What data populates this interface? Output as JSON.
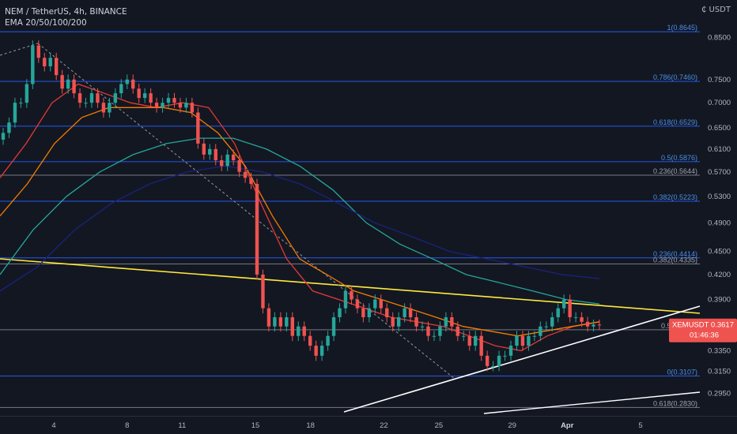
{
  "header": {
    "title": "NEM / TetherUS, 4h, BINANCE",
    "indicator": "EMA 20/50/100/200",
    "currency": "₵ USDT"
  },
  "colors": {
    "background": "#131722",
    "fib_line": "#2962ff",
    "fib_text": "#4a8fe7",
    "candle_up": "#26a69a",
    "candle_down": "#ef5350",
    "ema20": "#e53935",
    "ema50": "#f57c00",
    "ema100": "#26a69a",
    "ema200": "#1a237e",
    "trend_yellow": "#ffeb3b",
    "trend_white": "#ffffff",
    "price_tag": "#ef5350"
  },
  "price_tag": {
    "symbol": "XEMUSDT",
    "price": "0.3617",
    "countdown": "01:46:36"
  },
  "chart_data": {
    "type": "candlestick",
    "title": "NEM / TetherUS, 4h, BINANCE",
    "y_scale": "log",
    "ylim": [
      0.276,
      0.95
    ],
    "y_ticks": [
      "0.8500",
      "0.7500",
      "0.7000",
      "0.6500",
      "0.6100",
      "0.5700",
      "0.5300",
      "0.4900",
      "0.4500",
      "0.4200",
      "0.3900",
      "0.3600",
      "0.3350",
      "0.3150",
      "0.2950"
    ],
    "x_ticks": [
      "4",
      "8",
      "11",
      "15",
      "18",
      "22",
      "25",
      "29",
      "Apr",
      "5"
    ],
    "x_days_range": [
      1.0,
      6.9
    ],
    "fib_levels": [
      {
        "label": "1(0.8645)",
        "value": 0.8645,
        "blue": true
      },
      {
        "label": "0.786(0.7460)",
        "value": 0.746,
        "blue": true
      },
      {
        "label": "0.618(0.6529)",
        "value": 0.6529,
        "blue": true
      },
      {
        "label": "0.5(0.5876)",
        "value": 0.5876,
        "blue": true
      },
      {
        "label": "0.236(0.5644)",
        "value": 0.5644,
        "blue": false
      },
      {
        "label": "0.382(0.5223)",
        "value": 0.5223,
        "blue": true
      },
      {
        "label": "0.236(0.4414)",
        "value": 0.4414,
        "blue": true
      },
      {
        "label": "0.382(0.4335)",
        "value": 0.4335,
        "blue": false
      },
      {
        "label": "0.5(0.3565)",
        "value": 0.3565,
        "blue": false
      },
      {
        "label": "0(0.3107)",
        "value": 0.3107,
        "blue": true
      },
      {
        "label": "0.618(0.2830)",
        "value": 0.283,
        "blue": false
      }
    ],
    "closes": [
      0.64,
      0.66,
      0.7,
      0.7,
      0.74,
      0.83,
      0.8,
      0.78,
      0.8,
      0.76,
      0.73,
      0.75,
      0.72,
      0.7,
      0.7,
      0.72,
      0.7,
      0.68,
      0.7,
      0.72,
      0.74,
      0.75,
      0.73,
      0.71,
      0.72,
      0.7,
      0.69,
      0.7,
      0.71,
      0.7,
      0.69,
      0.7,
      0.68,
      0.62,
      0.6,
      0.61,
      0.59,
      0.58,
      0.6,
      0.59,
      0.57,
      0.56,
      0.55,
      0.42,
      0.38,
      0.36,
      0.37,
      0.36,
      0.37,
      0.35,
      0.36,
      0.35,
      0.34,
      0.33,
      0.34,
      0.35,
      0.37,
      0.38,
      0.4,
      0.39,
      0.38,
      0.37,
      0.38,
      0.39,
      0.38,
      0.37,
      0.36,
      0.37,
      0.38,
      0.37,
      0.36,
      0.36,
      0.35,
      0.35,
      0.36,
      0.37,
      0.36,
      0.35,
      0.35,
      0.34,
      0.35,
      0.33,
      0.32,
      0.32,
      0.33,
      0.33,
      0.34,
      0.35,
      0.34,
      0.35,
      0.35,
      0.36,
      0.36,
      0.37,
      0.38,
      0.39,
      0.37,
      0.37,
      0.365,
      0.36,
      0.362,
      0.3617
    ],
    "ema": [
      {
        "name": "EMA 20",
        "points": [
          0.56,
          0.62,
          0.7,
          0.74,
          0.72,
          0.7,
          0.69,
          0.7,
          0.69,
          0.62,
          0.52,
          0.44,
          0.4,
          0.39,
          0.38,
          0.37,
          0.365,
          0.36,
          0.35,
          0.34,
          0.335,
          0.35,
          0.36,
          0.365
        ]
      },
      {
        "name": "EMA 50",
        "points": [
          0.5,
          0.55,
          0.62,
          0.67,
          0.69,
          0.69,
          0.69,
          0.68,
          0.64,
          0.58,
          0.5,
          0.44,
          0.42,
          0.4,
          0.39,
          0.38,
          0.37,
          0.36,
          0.355,
          0.35,
          0.355,
          0.36,
          0.365
        ]
      },
      {
        "name": "EMA 100",
        "points": [
          0.42,
          0.48,
          0.53,
          0.57,
          0.6,
          0.62,
          0.63,
          0.63,
          0.61,
          0.58,
          0.54,
          0.49,
          0.46,
          0.44,
          0.42,
          0.41,
          0.4,
          0.39,
          0.385
        ]
      },
      {
        "name": "EMA 200",
        "points": [
          0.4,
          0.43,
          0.48,
          0.52,
          0.55,
          0.57,
          0.58,
          0.57,
          0.55,
          0.52,
          0.49,
          0.47,
          0.45,
          0.44,
          0.43,
          0.42,
          0.415
        ]
      }
    ]
  }
}
